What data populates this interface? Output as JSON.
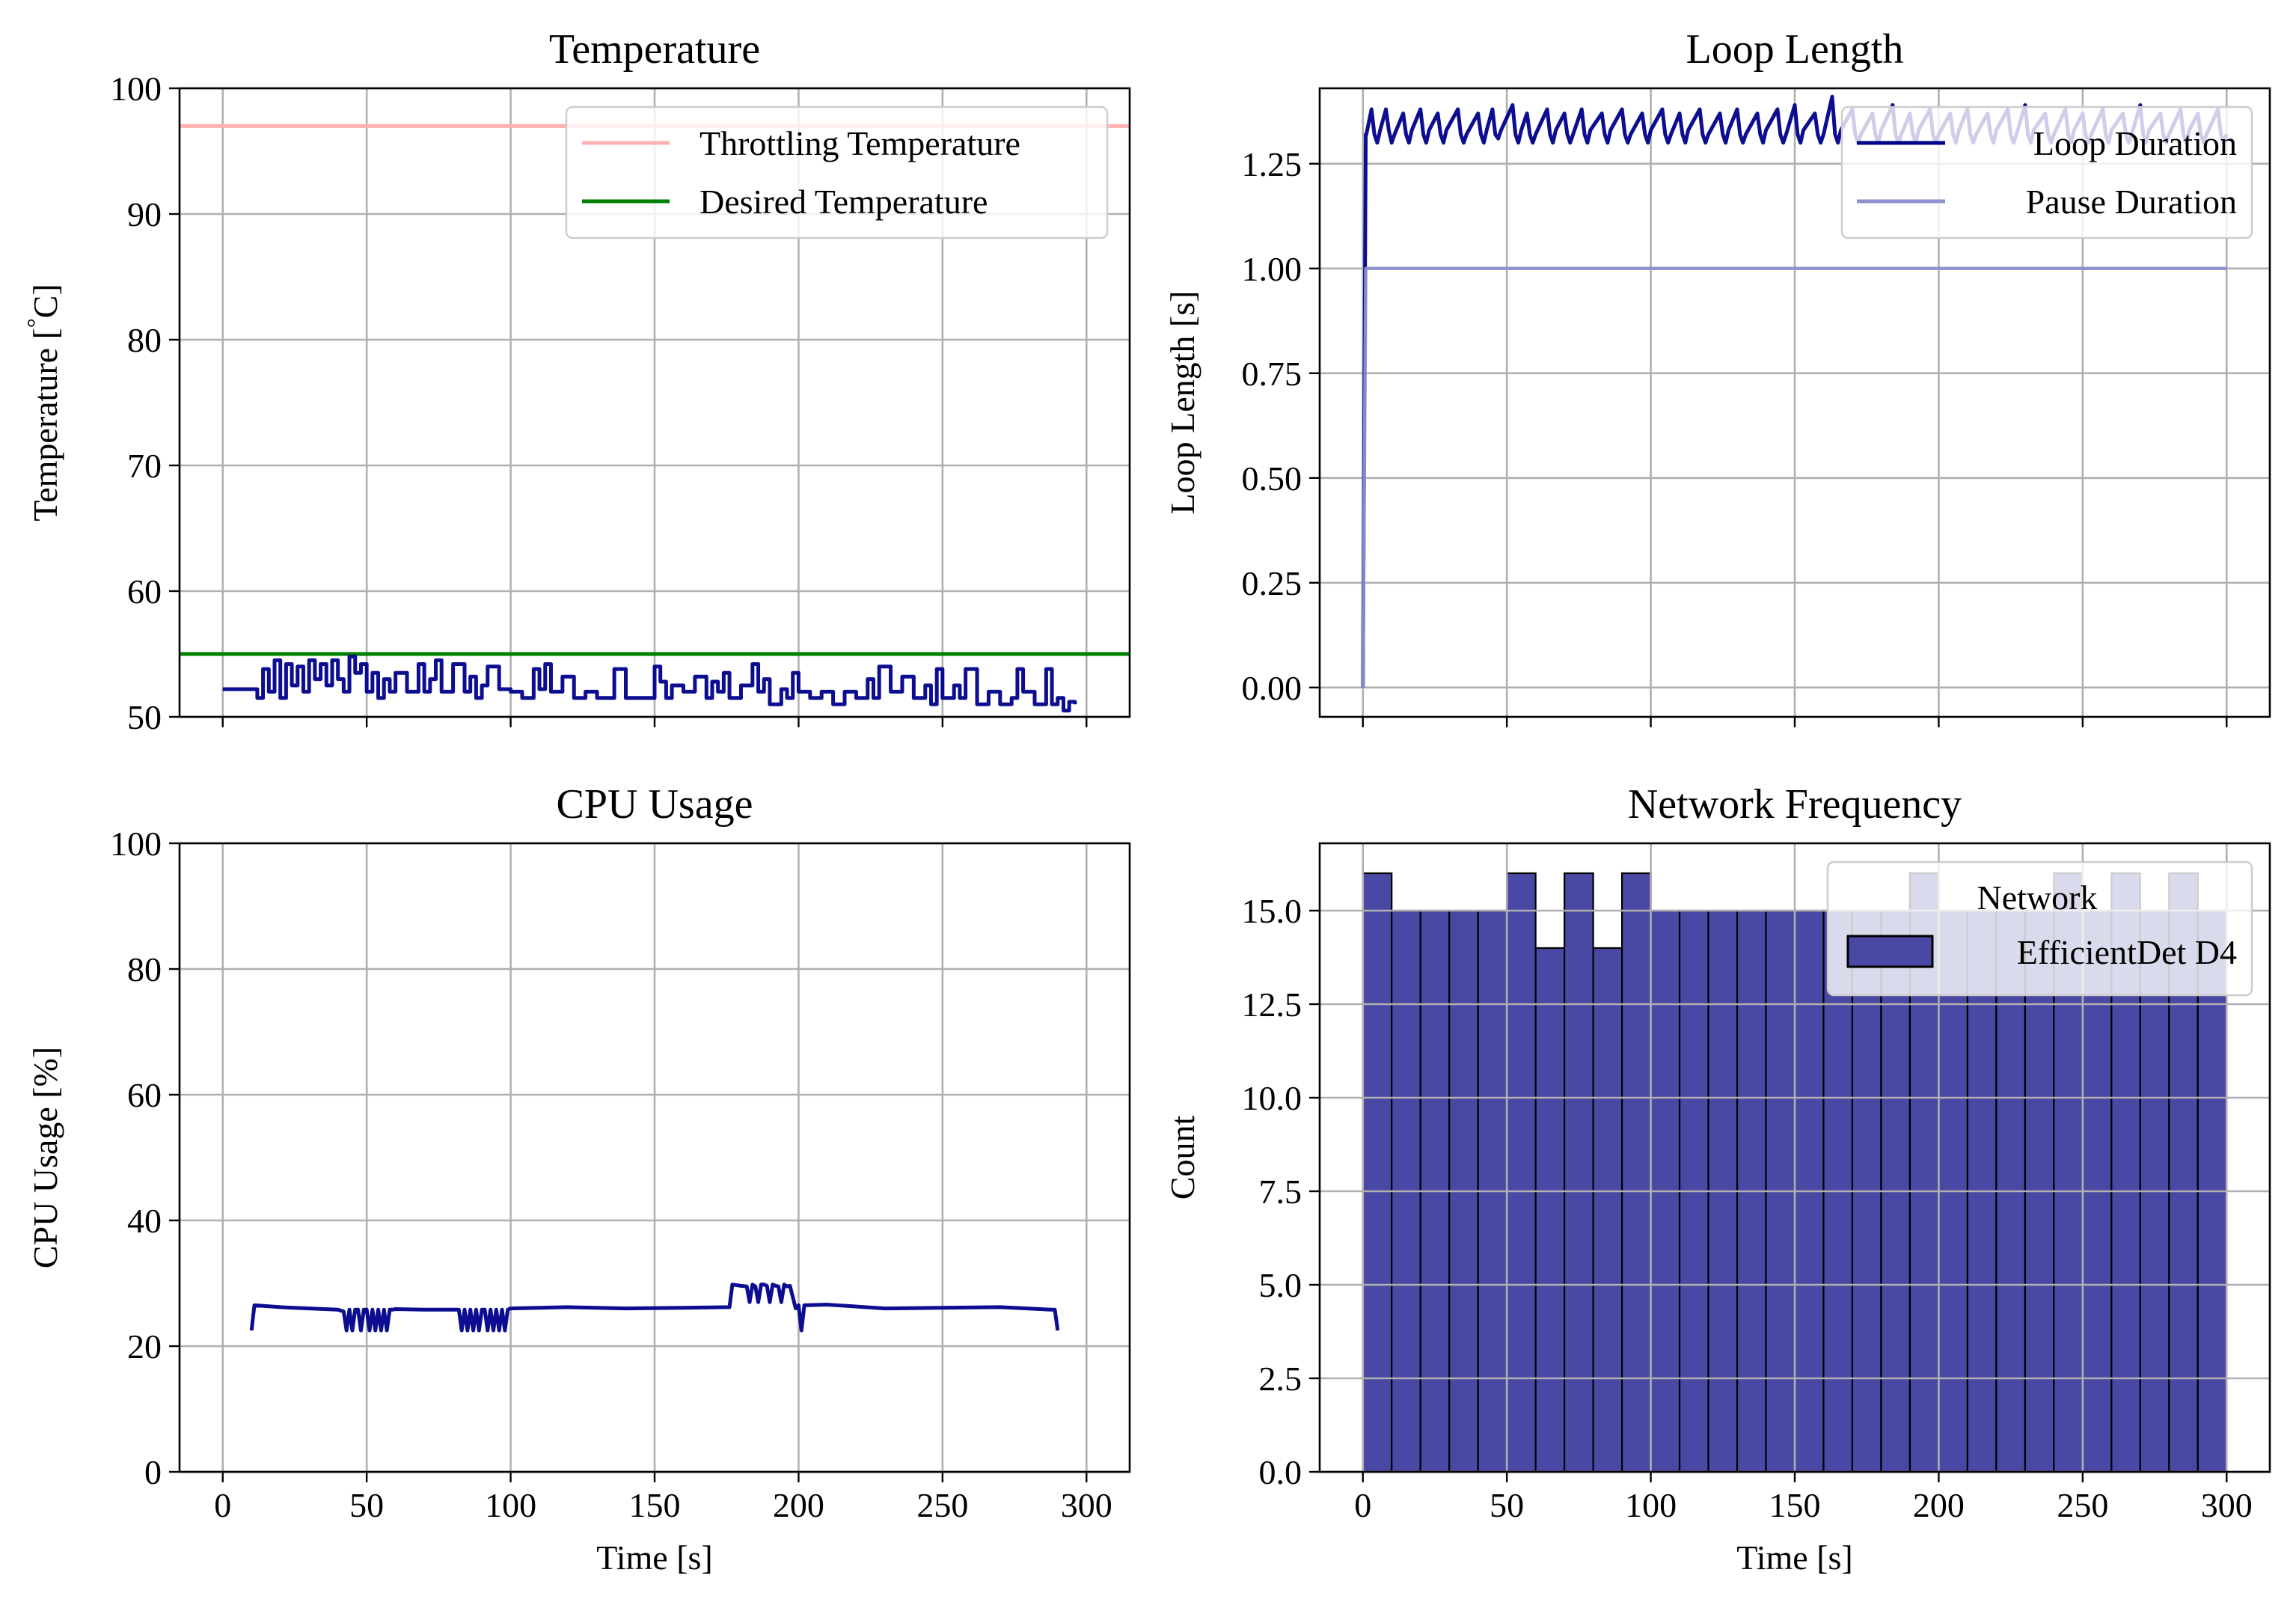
{
  "colors": {
    "navy": "#00008B",
    "pause": "#8C8FD0",
    "throttle": "#FFB1B1",
    "desired": "#008000",
    "bar_fill": "#4949A5",
    "grid": "#B0B0B0"
  },
  "chart_data": [
    {
      "id": "temperature",
      "type": "line",
      "title": "Temperature",
      "xlabel": "",
      "ylabel": "Temperature [$^\\circ$C]",
      "ylabel_text": "Temperature [",
      "ylabel_deg": "°",
      "ylabel_unit": "C]",
      "xlim": [
        -15,
        315
      ],
      "ylim": [
        50,
        100
      ],
      "xticks": [
        0,
        50,
        100,
        150,
        200,
        250,
        300
      ],
      "yticks": [
        50,
        60,
        70,
        80,
        90,
        100
      ],
      "ytick_labels": [
        "50",
        "60",
        "70",
        "80",
        "90",
        "100"
      ],
      "grid": true,
      "legend": {
        "position": "top-right",
        "entries": [
          "Throttling Temperature",
          "Desired Temperature"
        ]
      },
      "hlines": [
        {
          "name": "Throttling Temperature",
          "y": 97,
          "color": "#FFB1B1"
        },
        {
          "name": "Desired Temperature",
          "y": 55,
          "color": "#008000"
        }
      ],
      "series": [
        {
          "x": [
            0,
            10,
            12,
            14,
            16,
            18,
            20,
            22,
            24,
            26,
            28,
            30,
            32,
            34,
            36,
            38,
            40,
            42,
            44,
            46,
            48,
            50,
            52,
            54,
            56,
            58,
            60,
            64,
            68,
            70,
            72,
            74,
            76,
            80,
            84,
            86,
            88,
            90,
            92,
            96,
            100,
            104,
            108,
            110,
            112,
            114,
            118,
            122,
            126,
            130,
            136,
            140,
            148,
            150,
            152,
            154,
            156,
            160,
            164,
            168,
            170,
            172,
            174,
            176,
            180,
            184,
            186,
            188,
            190,
            194,
            196,
            198,
            200,
            204,
            208,
            212,
            216,
            220,
            224,
            226,
            228,
            232,
            236,
            240,
            244,
            246,
            248,
            250,
            254,
            256,
            258,
            262,
            266,
            270,
            274,
            276,
            278,
            282,
            286,
            288,
            290,
            292,
            294,
            296
          ],
          "y": [
            52.2,
            52.2,
            51.5,
            53.8,
            52.0,
            54.5,
            51.5,
            54.2,
            52.5,
            54.0,
            52.0,
            54.5,
            53.0,
            54.2,
            52.5,
            54.5,
            53.0,
            52.0,
            54.8,
            53.5,
            54.2,
            52.0,
            53.5,
            51.5,
            53.0,
            52.0,
            53.5,
            52.0,
            54.2,
            52.0,
            53.0,
            54.5,
            52.0,
            54.2,
            52.0,
            53.2,
            51.5,
            52.5,
            54.0,
            52.2,
            52.0,
            51.5,
            53.8,
            52.2,
            54.2,
            52.0,
            53.2,
            51.5,
            52.0,
            51.5,
            53.8,
            51.5,
            51.5,
            54.0,
            52.8,
            51.5,
            52.5,
            52.0,
            53.2,
            51.5,
            52.8,
            52.0,
            53.5,
            51.5,
            52.5,
            54.2,
            52.0,
            53.0,
            51.0,
            52.2,
            51.5,
            53.5,
            52.0,
            51.5,
            52.0,
            51.0,
            52.0,
            51.5,
            53.0,
            51.5,
            54.0,
            52.0,
            53.2,
            51.5,
            52.5,
            51.0,
            53.8,
            51.5,
            52.5,
            51.5,
            53.8,
            51.0,
            52.0,
            51.0,
            51.5,
            53.8,
            52.0,
            51.0,
            53.8,
            51.0,
            51.5,
            50.5,
            51.2,
            51.0
          ]
        }
      ]
    },
    {
      "id": "loop_length",
      "type": "line",
      "title": "Loop Length",
      "xlabel": "",
      "ylabel": "Loop Length [s]",
      "xlim": [
        -15,
        315
      ],
      "ylim": [
        -0.07,
        1.43
      ],
      "xticks": [
        0,
        50,
        100,
        150,
        200,
        250,
        300
      ],
      "yticks": [
        0,
        0.25,
        0.5,
        0.75,
        1.0,
        1.25
      ],
      "ytick_labels": [
        "0.00",
        "0.25",
        "0.50",
        "0.75",
        "1.00",
        "1.25"
      ],
      "grid": true,
      "legend": {
        "position": "top-right",
        "entries": [
          "Loop Duration",
          "Pause Duration"
        ]
      },
      "series": [
        {
          "name": "Loop Duration",
          "x": [
            0,
            1,
            1.2,
            3,
            4,
            5,
            6,
            8,
            9,
            10,
            11,
            14,
            15,
            16,
            17,
            20,
            21,
            22,
            23,
            26,
            27,
            28,
            29,
            33,
            34,
            35,
            36,
            40,
            41,
            42,
            43,
            45,
            46,
            47,
            48,
            52,
            53,
            54,
            55,
            57,
            58,
            59,
            60,
            64,
            65,
            66,
            67,
            70,
            71,
            72,
            73,
            76,
            77,
            78,
            79,
            83,
            84,
            85,
            86,
            90,
            91,
            92,
            93,
            97,
            98,
            99,
            100,
            104,
            105,
            106,
            107,
            110,
            111,
            112,
            113,
            117,
            118,
            119,
            120,
            124,
            125,
            126,
            127,
            130,
            131,
            132,
            133,
            137,
            138,
            139,
            140,
            144,
            145,
            146,
            147,
            150,
            151,
            152,
            153,
            157,
            158,
            159,
            160,
            163,
            164,
            165,
            166,
            170,
            171,
            172,
            173,
            177,
            178,
            179,
            180,
            184,
            185,
            186,
            187,
            190,
            191,
            192,
            193,
            197,
            198,
            199,
            200,
            204,
            205,
            206,
            207,
            210,
            211,
            212,
            213,
            217,
            218,
            219,
            220,
            224,
            225,
            226,
            227,
            230,
            231,
            232,
            233,
            237,
            238,
            239,
            240,
            244,
            245,
            246,
            247,
            250,
            251,
            252,
            253,
            257,
            258,
            259,
            260,
            264,
            265,
            266,
            267,
            270,
            271,
            272,
            273,
            277,
            278,
            279,
            280,
            284,
            285,
            286,
            287,
            290,
            291,
            292,
            293,
            297,
            298,
            299,
            300
          ],
          "y": [
            0,
            1.32,
            1.32,
            1.38,
            1.32,
            1.3,
            1.33,
            1.38,
            1.33,
            1.3,
            1.32,
            1.37,
            1.32,
            1.3,
            1.33,
            1.38,
            1.32,
            1.3,
            1.33,
            1.37,
            1.32,
            1.3,
            1.33,
            1.38,
            1.32,
            1.3,
            1.32,
            1.37,
            1.32,
            1.3,
            1.33,
            1.38,
            1.32,
            1.31,
            1.33,
            1.39,
            1.32,
            1.3,
            1.33,
            1.37,
            1.32,
            1.3,
            1.32,
            1.38,
            1.32,
            1.3,
            1.33,
            1.37,
            1.32,
            1.3,
            1.32,
            1.38,
            1.32,
            1.3,
            1.33,
            1.37,
            1.32,
            1.3,
            1.33,
            1.38,
            1.32,
            1.3,
            1.32,
            1.37,
            1.32,
            1.3,
            1.33,
            1.38,
            1.32,
            1.3,
            1.32,
            1.37,
            1.32,
            1.3,
            1.33,
            1.38,
            1.32,
            1.3,
            1.32,
            1.37,
            1.32,
            1.3,
            1.33,
            1.38,
            1.32,
            1.3,
            1.32,
            1.37,
            1.32,
            1.3,
            1.33,
            1.38,
            1.32,
            1.3,
            1.32,
            1.39,
            1.32,
            1.3,
            1.33,
            1.37,
            1.32,
            1.3,
            1.32,
            1.41,
            1.32,
            1.3,
            1.33,
            1.38,
            1.32,
            1.3,
            1.32,
            1.37,
            1.32,
            1.3,
            1.33,
            1.39,
            1.32,
            1.3,
            1.32,
            1.37,
            1.32,
            1.3,
            1.33,
            1.38,
            1.32,
            1.3,
            1.32,
            1.37,
            1.32,
            1.3,
            1.33,
            1.38,
            1.32,
            1.3,
            1.32,
            1.37,
            1.32,
            1.3,
            1.33,
            1.38,
            1.32,
            1.3,
            1.32,
            1.39,
            1.32,
            1.3,
            1.33,
            1.37,
            1.32,
            1.3,
            1.32,
            1.38,
            1.32,
            1.3,
            1.33,
            1.37,
            1.32,
            1.3,
            1.32,
            1.38,
            1.32,
            1.3,
            1.33,
            1.37,
            1.32,
            1.3,
            1.32,
            1.39,
            1.32,
            1.3,
            1.33,
            1.37,
            1.32,
            1.3,
            1.32,
            1.38,
            1.32,
            1.3,
            1.33,
            1.37,
            1.32,
            1.3,
            1.32,
            1.38,
            1.32,
            1.3,
            1.32
          ]
        },
        {
          "name": "Pause Duration",
          "x": [
            0,
            1,
            300
          ],
          "y": [
            0,
            1.0,
            1.0
          ]
        }
      ]
    },
    {
      "id": "cpu_usage",
      "type": "line",
      "title": "CPU Usage",
      "xlabel": "Time [s]",
      "ylabel": "CPU Usage [%]",
      "xlim": [
        -15,
        315
      ],
      "ylim": [
        0,
        100
      ],
      "xticks": [
        0,
        50,
        100,
        150,
        200,
        250,
        300
      ],
      "xtick_labels": [
        "0",
        "50",
        "100",
        "150",
        "200",
        "250",
        "300"
      ],
      "yticks": [
        0,
        20,
        40,
        60,
        80,
        100
      ],
      "ytick_labels": [
        "0",
        "20",
        "40",
        "60",
        "80",
        "100"
      ],
      "grid": true,
      "series": [
        {
          "x": [
            10,
            11,
            20,
            30,
            40,
            42,
            43,
            44,
            45,
            46,
            47,
            48,
            49,
            50,
            51,
            52,
            53,
            54,
            55,
            56,
            57,
            58,
            59,
            60,
            70,
            80,
            82,
            83,
            84,
            85,
            86,
            87,
            88,
            89,
            90,
            91,
            92,
            93,
            94,
            95,
            96,
            97,
            98,
            99,
            100,
            120,
            140,
            160,
            176,
            177,
            180,
            182,
            183,
            184,
            185,
            186,
            187,
            188,
            189,
            190,
            191,
            192,
            193,
            194,
            195,
            196,
            197,
            199,
            200,
            201,
            202,
            210,
            230,
            250,
            270,
            288,
            289,
            290
          ],
          "y": [
            22.5,
            26.5,
            26.2,
            26.0,
            25.8,
            25.5,
            22.5,
            25.8,
            22.5,
            25.8,
            25.8,
            22.5,
            25.8,
            25.8,
            22.5,
            25.8,
            22.5,
            25.8,
            22.5,
            25.8,
            22.5,
            25.8,
            25.8,
            25.9,
            25.8,
            25.8,
            25.8,
            22.5,
            25.8,
            22.5,
            25.8,
            22.5,
            25.8,
            22.5,
            25.8,
            25.8,
            22.5,
            25.8,
            22.5,
            25.8,
            22.5,
            25.8,
            22.5,
            25.8,
            26.0,
            26.2,
            26.0,
            26.1,
            26.2,
            29.8,
            29.6,
            29.5,
            27.0,
            29.8,
            29.5,
            27.0,
            29.8,
            29.8,
            29.6,
            27.0,
            29.8,
            29.6,
            29.5,
            27.0,
            29.8,
            29.5,
            29.6,
            26.0,
            26.5,
            22.5,
            26.5,
            26.6,
            26.0,
            26.1,
            26.2,
            25.8,
            25.8,
            22.5
          ]
        }
      ]
    },
    {
      "id": "network_frequency",
      "type": "bar",
      "title": "Network Frequency",
      "xlabel": "Time [s]",
      "ylabel": "Count",
      "xlim": [
        -15,
        315
      ],
      "ylim": [
        0,
        16.8
      ],
      "xticks": [
        0,
        50,
        100,
        150,
        200,
        250,
        300
      ],
      "xtick_labels": [
        "0",
        "50",
        "100",
        "150",
        "200",
        "250",
        "300"
      ],
      "yticks": [
        0,
        2.5,
        5.0,
        7.5,
        10.0,
        12.5,
        15.0
      ],
      "ytick_labels": [
        "0.0",
        "2.5",
        "5.0",
        "7.5",
        "10.0",
        "12.5",
        "15.0"
      ],
      "grid": true,
      "legend": {
        "position": "top-right",
        "title": "Network",
        "entries": [
          "EfficientDet D4"
        ]
      },
      "bin_edges": [
        0,
        10,
        20,
        30,
        40,
        50,
        60,
        70,
        80,
        90,
        100,
        110,
        120,
        130,
        140,
        150,
        160,
        170,
        180,
        190,
        200,
        210,
        220,
        230,
        240,
        250,
        260,
        270,
        280,
        290,
        300
      ],
      "values": [
        16,
        15,
        15,
        15,
        15,
        16,
        14,
        16,
        14,
        16,
        15,
        15,
        15,
        15,
        15,
        15,
        15,
        15,
        15,
        16,
        15,
        15,
        15,
        15,
        16,
        15,
        16,
        15,
        16,
        15
      ]
    }
  ]
}
